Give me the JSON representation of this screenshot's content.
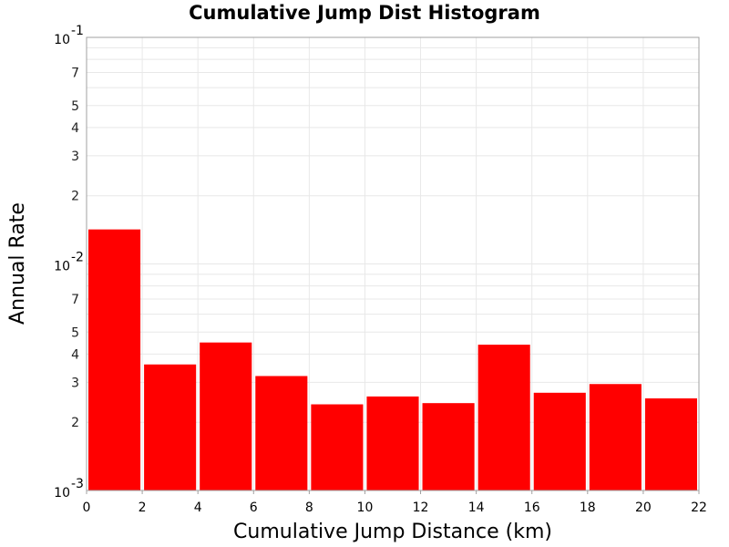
{
  "chart_data": {
    "type": "bar",
    "title": "Cumulative Jump Dist Histogram",
    "xlabel": "Cumulative Jump Distance (km)",
    "ylabel": "Annual Rate",
    "xlim": [
      0,
      22
    ],
    "ylim": [
      0.001,
      0.1
    ],
    "yscale": "log",
    "grid": true,
    "x_ticks": [
      "0",
      "2",
      "4",
      "6",
      "8",
      "10",
      "12",
      "14",
      "16",
      "18",
      "20",
      "22"
    ],
    "y_major_ticks": [
      {
        "base": "10",
        "exp": "-3",
        "value": 0.001
      },
      {
        "base": "10",
        "exp": "-2",
        "value": 0.01
      },
      {
        "base": "10",
        "exp": "-1",
        "value": 0.1
      }
    ],
    "y_minor_ticks": [
      {
        "label": "2",
        "value": 0.002
      },
      {
        "label": "3",
        "value": 0.003
      },
      {
        "label": "4",
        "value": 0.004
      },
      {
        "label": "5",
        "value": 0.005
      },
      {
        "label": "7",
        "value": 0.007
      },
      {
        "label": "2",
        "value": 0.02
      },
      {
        "label": "3",
        "value": 0.03
      },
      {
        "label": "4",
        "value": 0.04
      },
      {
        "label": "5",
        "value": 0.05
      },
      {
        "label": "7",
        "value": 0.07
      }
    ],
    "bins": [
      {
        "x0": 0,
        "x1": 2,
        "value": 0.0142
      },
      {
        "x0": 2,
        "x1": 4,
        "value": 0.0036
      },
      {
        "x0": 4,
        "x1": 6,
        "value": 0.0045
      },
      {
        "x0": 6,
        "x1": 8,
        "value": 0.0032
      },
      {
        "x0": 8,
        "x1": 10,
        "value": 0.0024
      },
      {
        "x0": 10,
        "x1": 12,
        "value": 0.0026
      },
      {
        "x0": 12,
        "x1": 14,
        "value": 0.00243
      },
      {
        "x0": 14,
        "x1": 16,
        "value": 0.0044
      },
      {
        "x0": 16,
        "x1": 18,
        "value": 0.0027
      },
      {
        "x0": 18,
        "x1": 20,
        "value": 0.00295
      },
      {
        "x0": 20,
        "x1": 22,
        "value": 0.00255
      }
    ],
    "bar_color": "#ff0000",
    "grid_color": "#e8e8e8",
    "frame_color": "#a0a0a0"
  }
}
